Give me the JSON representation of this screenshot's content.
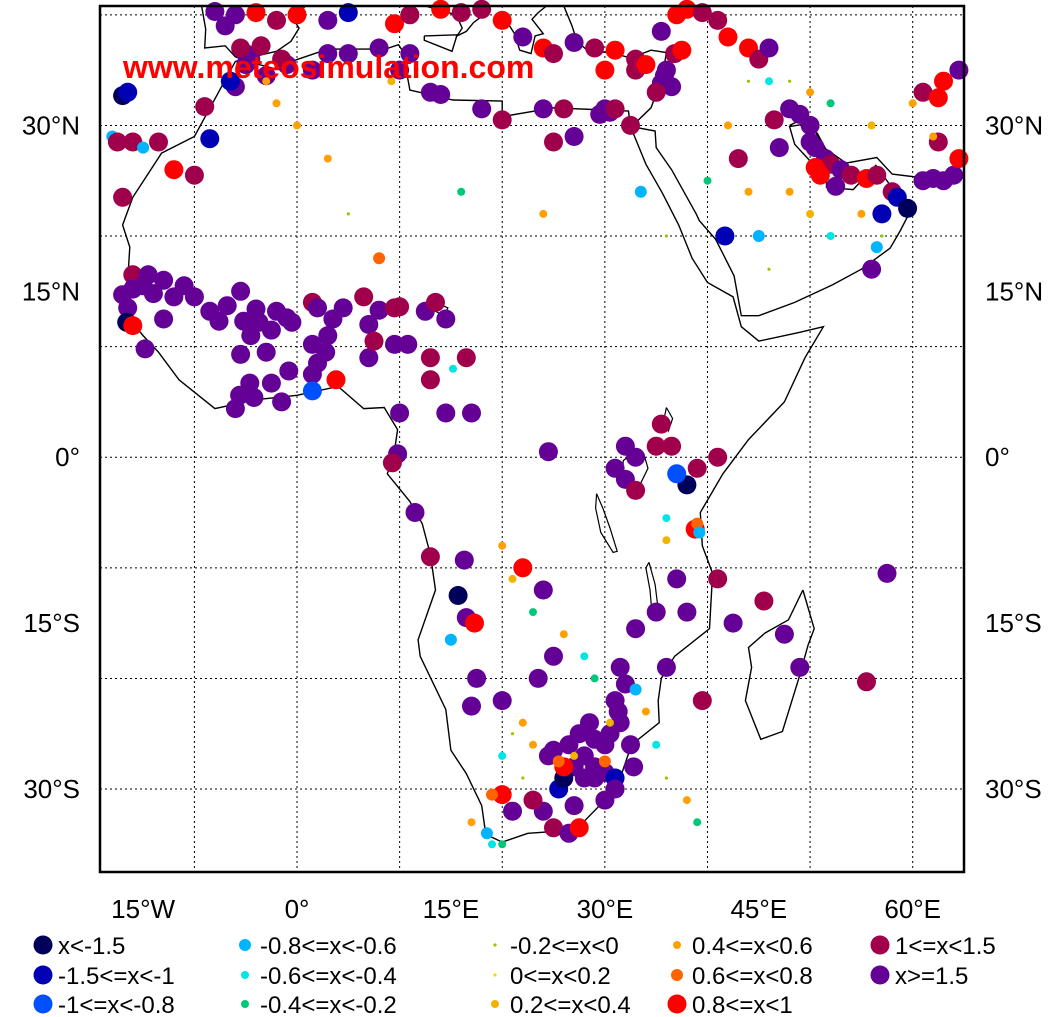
{
  "watermark": "www.meteosimulation.com",
  "axes": {
    "lon_ticks": [
      "15°W",
      "0°",
      "15°E",
      "30°E",
      "45°E",
      "60°E"
    ],
    "lat_ticks": [
      "30°N",
      "15°N",
      "0°",
      "15°S",
      "30°S"
    ]
  },
  "legend": {
    "items": [
      {
        "label": "x<-1.5",
        "color": "#00005a",
        "size": "large"
      },
      {
        "label": "-1.5<=x<-1",
        "color": "#0000b4",
        "size": "large"
      },
      {
        "label": "-1<=x<-0.8",
        "color": "#0050ff",
        "size": "large"
      },
      {
        "label": "-0.8<=x<-0.6",
        "color": "#00b4ff",
        "size": "medium"
      },
      {
        "label": "-0.6<=x<-0.4",
        "color": "#00e6e6",
        "size": "small"
      },
      {
        "label": "-0.4<=x<-0.2",
        "color": "#00c878",
        "size": "small"
      },
      {
        "label": "-0.2<=x<0",
        "color": "#96c800",
        "size": "tiny"
      },
      {
        "label": "0<=x<0.2",
        "color": "#f0dc00",
        "size": "tiny"
      },
      {
        "label": "0.2<=x<0.4",
        "color": "#f0b400",
        "size": "small"
      },
      {
        "label": "0.4<=x<0.6",
        "color": "#ffa000",
        "size": "small"
      },
      {
        "label": "0.6<=x<0.8",
        "color": "#ff6400",
        "size": "medium"
      },
      {
        "label": "0.8<=x<1",
        "color": "#ff0000",
        "size": "large"
      },
      {
        "label": "1<=x<1.5",
        "color": "#a0004b",
        "size": "large"
      },
      {
        "label": "x>=1.5",
        "color": "#640096",
        "size": "large"
      }
    ]
  }
}
